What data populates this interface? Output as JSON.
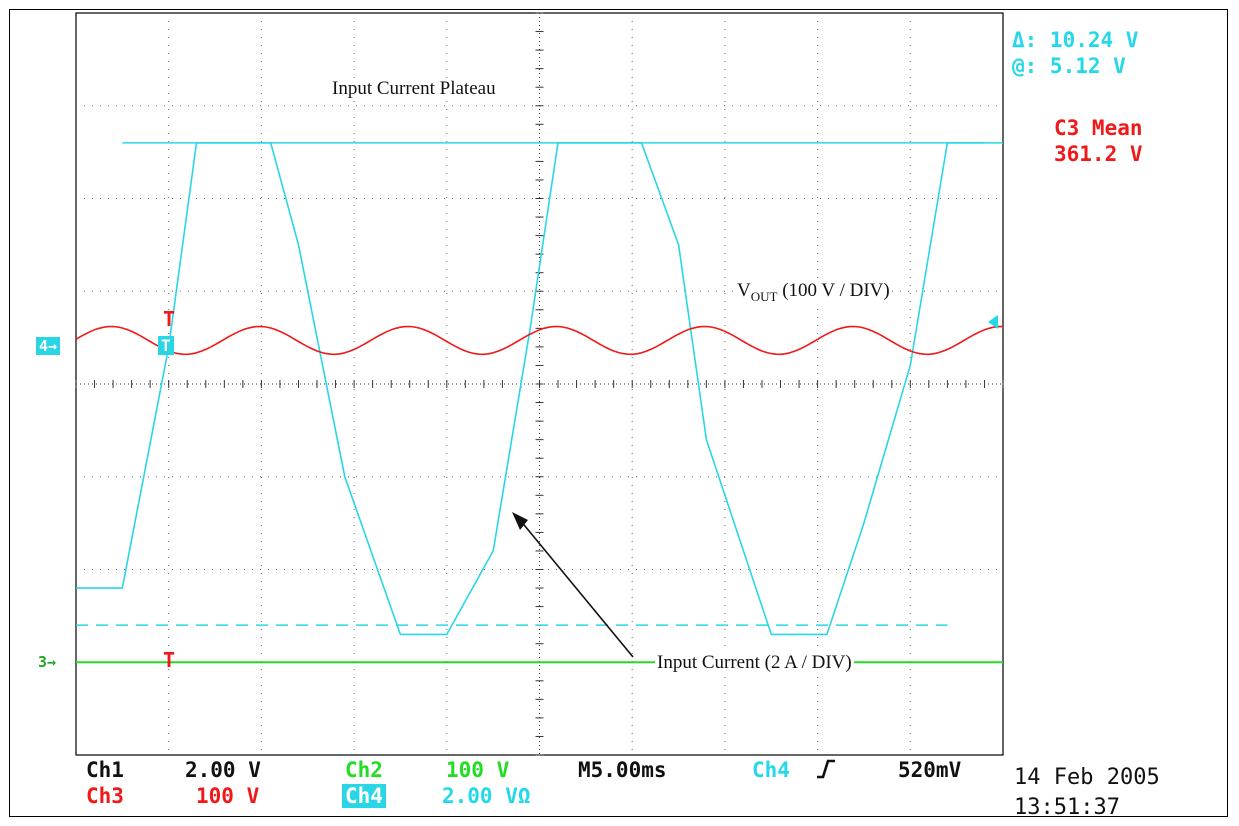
{
  "chart_data": {
    "type": "line",
    "timebase": "M5.00ms",
    "x_unit": "ms",
    "xlim": [
      0,
      50
    ],
    "ylim": [
      -4,
      4
    ],
    "grid": true,
    "series": [
      {
        "name": "Ch4",
        "color": "#2ad6e6",
        "x": [
          0,
          2.5,
          5,
          6.5,
          8,
          10.5,
          12,
          14.5,
          17.5,
          20,
          22.5,
          24.5,
          26,
          28,
          30.5,
          32.5,
          34,
          37.5,
          40.5,
          42.5,
          45,
          47,
          49
        ],
        "y": [
          -2.2,
          -2.2,
          0.4,
          2.6,
          2.6,
          2.6,
          1.5,
          -1,
          -2.7,
          -2.7,
          -1.8,
          0.6,
          2.6,
          2.6,
          2.6,
          1.5,
          -0.6,
          -2.7,
          -2.7,
          -1.5,
          0.2,
          2.6,
          2.6
        ]
      },
      {
        "name": "Ch3",
        "color": "#f01818",
        "x": [
          0,
          2,
          5,
          8,
          10,
          12,
          14,
          17,
          20,
          22,
          24,
          27,
          30,
          32,
          34,
          37,
          40,
          42,
          44,
          47,
          50
        ],
        "y": [
          0.55,
          0.65,
          0.45,
          0.3,
          0.5,
          0.65,
          0.5,
          0.3,
          0.45,
          0.6,
          0.55,
          0.35,
          0.4,
          0.6,
          0.55,
          0.35,
          0.45,
          0.6,
          0.55,
          0.35,
          0.55
        ]
      },
      {
        "name": "Ch2",
        "color": "#22dd22",
        "x": [
          0,
          50
        ],
        "y": [
          -3.0,
          -3.0
        ]
      }
    ],
    "reference_lines": {
      "plateau_level": 2.6,
      "trough_level": -2.6
    },
    "annotations": {
      "plateau": "Input Current Plateau",
      "vout_main": "V",
      "vout_sub": "OUT",
      "vout_rest": " (100 V / DIV)",
      "input_current": "Input Current (2 A / DIV)"
    }
  },
  "readouts": {
    "delta": "Δ: 10.24 V",
    "at": "@: 5.12 V",
    "c3_label": "C3 Mean",
    "c3_value": "361.2 V"
  },
  "channel_settings": {
    "ch1_label": "Ch1",
    "ch1_value": "2.00 V",
    "ch2_label": "Ch2",
    "ch2_value": "100 V",
    "ch3_label": "Ch3",
    "ch3_value": "100 V",
    "ch4_label": "Ch4",
    "ch4_value": "2.00 VΩ",
    "timebase": "M5.00ms",
    "trigger_ch": "Ch4",
    "trigger_icon": "rising-edge",
    "trigger_level": "520mV"
  },
  "markers": {
    "ch4": "4→",
    "ch3": "3→",
    "trigger_t": "T"
  },
  "date": "14 Feb 2005",
  "time": "13:51:37"
}
